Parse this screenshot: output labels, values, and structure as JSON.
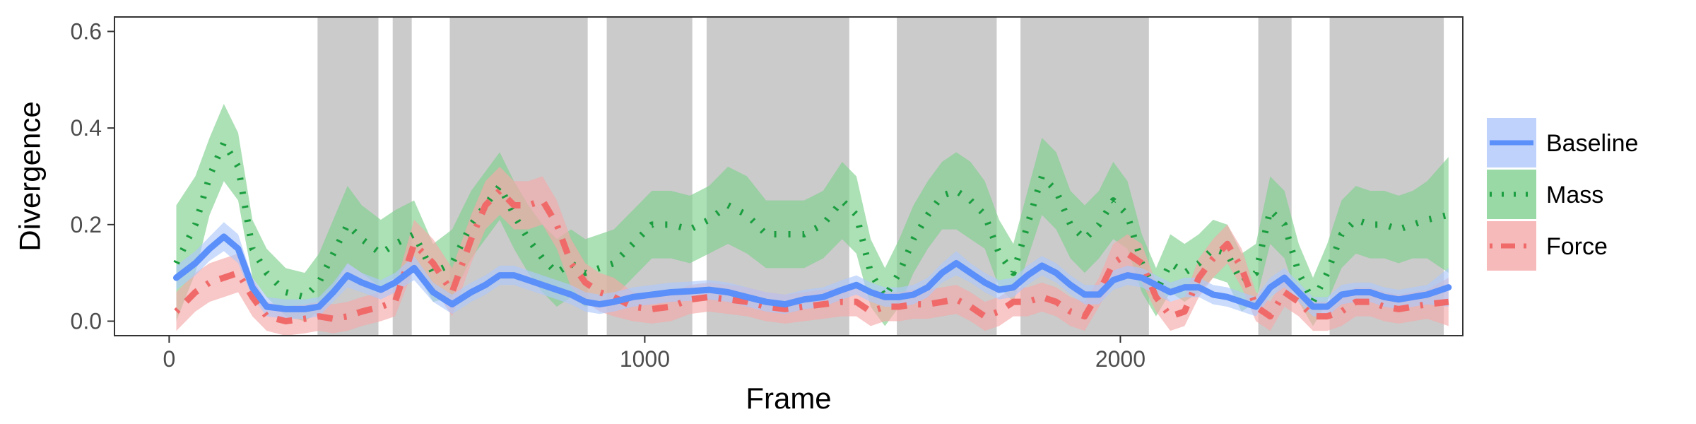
{
  "chart_data": {
    "type": "line",
    "xlabel": "Frame",
    "ylabel": "Divergence",
    "xlim": [
      -115,
      2720
    ],
    "ylim": [
      -0.03,
      0.63
    ],
    "x_ticks": [
      0,
      1000,
      2000
    ],
    "x_tick_labels": [
      "0",
      "1000",
      "2000"
    ],
    "y_ticks": [
      0.0,
      0.2,
      0.4,
      0.6
    ],
    "y_tick_labels": [
      "0.0",
      "0.2",
      "0.4",
      "0.6"
    ],
    "grid": false,
    "legend_position": "right",
    "shaded_regions": [
      [
        312,
        440
      ],
      [
        470,
        510
      ],
      [
        590,
        880
      ],
      [
        920,
        1100
      ],
      [
        1130,
        1430
      ],
      [
        1530,
        1740
      ],
      [
        1790,
        2060
      ],
      [
        2290,
        2360
      ],
      [
        2440,
        2680
      ]
    ],
    "x": [
      15,
      55,
      85,
      115,
      145,
      175,
      205,
      245,
      285,
      315,
      345,
      375,
      405,
      445,
      475,
      515,
      555,
      595,
      635,
      665,
      695,
      725,
      755,
      785,
      815,
      845,
      875,
      905,
      935,
      975,
      1015,
      1055,
      1095,
      1135,
      1175,
      1215,
      1255,
      1295,
      1335,
      1375,
      1415,
      1445,
      1475,
      1505,
      1535,
      1565,
      1595,
      1625,
      1655,
      1685,
      1715,
      1745,
      1775,
      1805,
      1835,
      1865,
      1895,
      1925,
      1955,
      1985,
      2015,
      2045,
      2075,
      2105,
      2135,
      2165,
      2195,
      2225,
      2255,
      2285,
      2315,
      2345,
      2375,
      2405,
      2435,
      2465,
      2495,
      2525,
      2555,
      2585,
      2615,
      2645,
      2690
    ],
    "series": [
      {
        "name": "Baseline",
        "color": "#5b8ff9",
        "band_color": "#aec7fa",
        "style": "solid",
        "y": [
          0.09,
          0.12,
          0.15,
          0.175,
          0.15,
          0.07,
          0.03,
          0.025,
          0.025,
          0.03,
          0.06,
          0.095,
          0.08,
          0.065,
          0.08,
          0.11,
          0.06,
          0.035,
          0.06,
          0.075,
          0.095,
          0.095,
          0.085,
          0.075,
          0.065,
          0.055,
          0.04,
          0.035,
          0.04,
          0.05,
          0.055,
          0.06,
          0.062,
          0.065,
          0.06,
          0.05,
          0.04,
          0.035,
          0.045,
          0.05,
          0.065,
          0.075,
          0.06,
          0.05,
          0.05,
          0.055,
          0.07,
          0.1,
          0.12,
          0.1,
          0.08,
          0.065,
          0.07,
          0.095,
          0.115,
          0.1,
          0.075,
          0.055,
          0.055,
          0.085,
          0.095,
          0.09,
          0.075,
          0.06,
          0.07,
          0.07,
          0.055,
          0.05,
          0.04,
          0.03,
          0.07,
          0.09,
          0.06,
          0.03,
          0.03,
          0.055,
          0.06,
          0.06,
          0.05,
          0.045,
          0.05,
          0.055,
          0.07
        ],
        "band": [
          0.025,
          0.025,
          0.025,
          0.03,
          0.03,
          0.02,
          0.02,
          0.02,
          0.02,
          0.02,
          0.02,
          0.025,
          0.02,
          0.02,
          0.02,
          0.025,
          0.02,
          0.02,
          0.02,
          0.02,
          0.02,
          0.02,
          0.02,
          0.02,
          0.02,
          0.02,
          0.02,
          0.02,
          0.02,
          0.02,
          0.02,
          0.02,
          0.02,
          0.02,
          0.02,
          0.02,
          0.02,
          0.02,
          0.02,
          0.02,
          0.02,
          0.02,
          0.02,
          0.02,
          0.02,
          0.02,
          0.02,
          0.02,
          0.025,
          0.02,
          0.02,
          0.02,
          0.02,
          0.02,
          0.02,
          0.02,
          0.02,
          0.02,
          0.02,
          0.02,
          0.02,
          0.02,
          0.02,
          0.02,
          0.02,
          0.02,
          0.02,
          0.02,
          0.02,
          0.02,
          0.02,
          0.02,
          0.02,
          0.02,
          0.02,
          0.02,
          0.02,
          0.02,
          0.02,
          0.02,
          0.02,
          0.02,
          0.04
        ]
      },
      {
        "name": "Mass",
        "color": "#1a9e3f",
        "band_color": "#7fd08e",
        "style": "dotted",
        "y": [
          0.12,
          0.2,
          0.3,
          0.37,
          0.32,
          0.15,
          0.1,
          0.06,
          0.05,
          0.08,
          0.14,
          0.2,
          0.17,
          0.14,
          0.16,
          0.18,
          0.1,
          0.12,
          0.2,
          0.24,
          0.28,
          0.22,
          0.17,
          0.13,
          0.1,
          0.12,
          0.1,
          0.11,
          0.12,
          0.16,
          0.2,
          0.2,
          0.19,
          0.21,
          0.24,
          0.22,
          0.18,
          0.18,
          0.18,
          0.2,
          0.25,
          0.22,
          0.1,
          0.05,
          0.1,
          0.17,
          0.22,
          0.26,
          0.27,
          0.25,
          0.22,
          0.14,
          0.1,
          0.2,
          0.3,
          0.27,
          0.2,
          0.17,
          0.2,
          0.25,
          0.22,
          0.12,
          0.06,
          0.12,
          0.1,
          0.12,
          0.15,
          0.14,
          0.08,
          0.1,
          0.23,
          0.2,
          0.1,
          0.04,
          0.1,
          0.18,
          0.21,
          0.2,
          0.2,
          0.19,
          0.2,
          0.21,
          0.22
        ],
        "band": [
          0.12,
          0.1,
          0.08,
          0.08,
          0.07,
          0.06,
          0.05,
          0.05,
          0.05,
          0.06,
          0.07,
          0.08,
          0.07,
          0.07,
          0.07,
          0.07,
          0.06,
          0.07,
          0.07,
          0.07,
          0.07,
          0.07,
          0.07,
          0.07,
          0.07,
          0.07,
          0.07,
          0.07,
          0.07,
          0.07,
          0.07,
          0.07,
          0.07,
          0.07,
          0.08,
          0.08,
          0.07,
          0.07,
          0.07,
          0.07,
          0.08,
          0.08,
          0.07,
          0.06,
          0.07,
          0.07,
          0.07,
          0.07,
          0.08,
          0.08,
          0.07,
          0.07,
          0.06,
          0.07,
          0.08,
          0.08,
          0.07,
          0.07,
          0.07,
          0.08,
          0.07,
          0.06,
          0.05,
          0.06,
          0.06,
          0.06,
          0.06,
          0.06,
          0.06,
          0.06,
          0.07,
          0.07,
          0.06,
          0.05,
          0.06,
          0.07,
          0.07,
          0.07,
          0.07,
          0.07,
          0.07,
          0.08,
          0.12
        ]
      },
      {
        "name": "Force",
        "color": "#f06a6a",
        "band_color": "#f4a9a9",
        "style": "dashdot",
        "y": [
          0.02,
          0.06,
          0.08,
          0.09,
          0.1,
          0.05,
          0.01,
          0.0,
          0.005,
          0.01,
          0.005,
          0.01,
          0.02,
          0.03,
          0.04,
          0.16,
          0.12,
          0.06,
          0.17,
          0.24,
          0.27,
          0.24,
          0.24,
          0.25,
          0.2,
          0.12,
          0.08,
          0.06,
          0.05,
          0.03,
          0.025,
          0.03,
          0.045,
          0.05,
          0.045,
          0.04,
          0.03,
          0.025,
          0.03,
          0.035,
          0.04,
          0.04,
          0.02,
          0.03,
          0.03,
          0.035,
          0.035,
          0.04,
          0.045,
          0.03,
          0.01,
          0.02,
          0.04,
          0.04,
          0.05,
          0.04,
          0.02,
          0.01,
          0.06,
          0.12,
          0.14,
          0.12,
          0.05,
          0.01,
          0.02,
          0.09,
          0.13,
          0.16,
          0.11,
          0.03,
          0.01,
          0.06,
          0.04,
          0.01,
          0.01,
          0.02,
          0.04,
          0.04,
          0.03,
          0.025,
          0.03,
          0.035,
          0.04
        ],
        "band": [
          0.04,
          0.04,
          0.04,
          0.04,
          0.04,
          0.04,
          0.03,
          0.03,
          0.03,
          0.03,
          0.03,
          0.03,
          0.03,
          0.03,
          0.03,
          0.05,
          0.05,
          0.05,
          0.05,
          0.05,
          0.05,
          0.05,
          0.05,
          0.05,
          0.05,
          0.05,
          0.04,
          0.04,
          0.04,
          0.03,
          0.03,
          0.03,
          0.03,
          0.03,
          0.03,
          0.03,
          0.03,
          0.03,
          0.03,
          0.03,
          0.03,
          0.03,
          0.03,
          0.03,
          0.03,
          0.03,
          0.03,
          0.03,
          0.03,
          0.03,
          0.03,
          0.03,
          0.03,
          0.03,
          0.03,
          0.03,
          0.03,
          0.03,
          0.03,
          0.04,
          0.04,
          0.04,
          0.03,
          0.03,
          0.03,
          0.04,
          0.04,
          0.04,
          0.04,
          0.03,
          0.03,
          0.03,
          0.03,
          0.03,
          0.03,
          0.03,
          0.03,
          0.03,
          0.03,
          0.03,
          0.03,
          0.03,
          0.05
        ]
      }
    ],
    "shade_color": "#cbcbcb"
  }
}
